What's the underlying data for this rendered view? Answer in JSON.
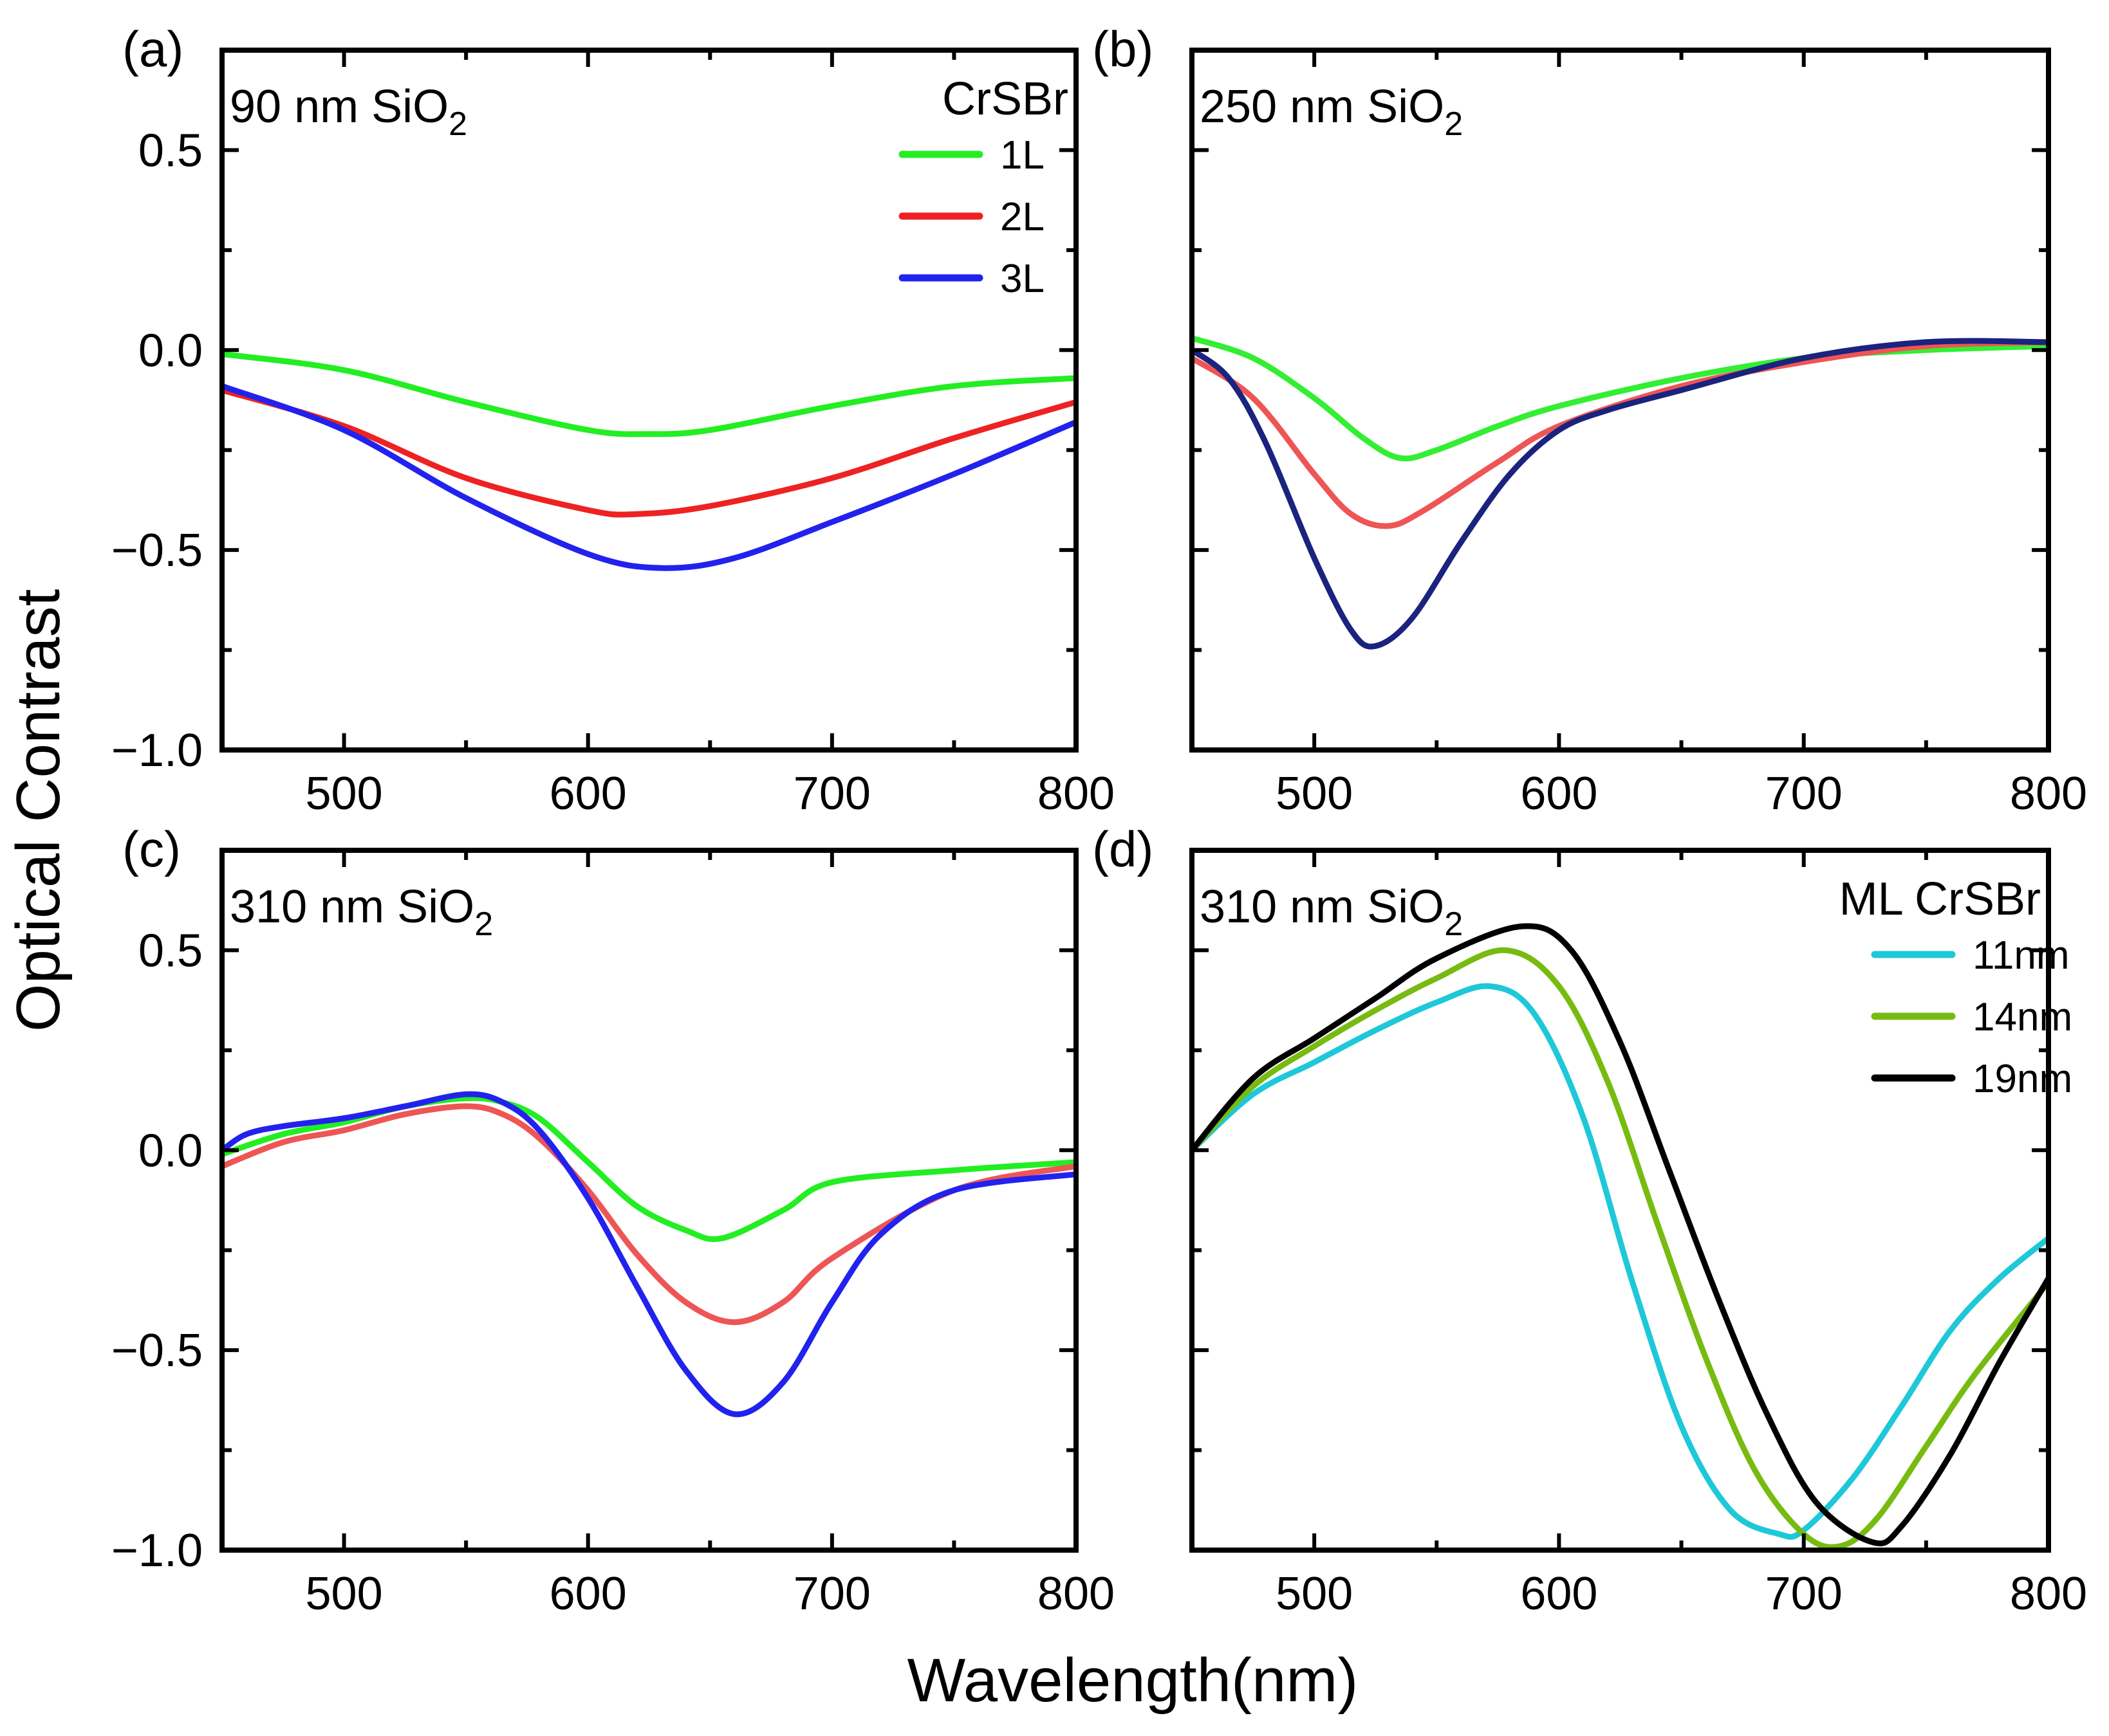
{
  "figure": {
    "ylabel": "Optical Contrast",
    "xlabel": "Wavelength(nm)"
  },
  "chart_data": [
    {
      "type": "line",
      "panel_label": "(a)",
      "annotation": {
        "prefix": "90 nm SiO",
        "subscript": "2"
      },
      "legend_title": "CrSBr",
      "legend_placement": "top-right",
      "xlim": [
        450,
        800
      ],
      "ylim": [
        -1.0,
        0.75
      ],
      "xticks": [
        500,
        600,
        700,
        800
      ],
      "xtick_labels": [
        "500",
        "600",
        "700",
        "800"
      ],
      "yticks": [
        0.5,
        0.0,
        -0.5,
        -1.0
      ],
      "ytick_labels": [
        "0.5",
        "0.0",
        "−0.5",
        "−1.0"
      ],
      "series": [
        {
          "name": "1L",
          "color": "#22ee22",
          "x": [
            450,
            500,
            550,
            600,
            625,
            650,
            700,
            750,
            800
          ],
          "y": [
            -0.01,
            -0.05,
            -0.13,
            -0.2,
            -0.21,
            -0.2,
            -0.14,
            -0.09,
            -0.07
          ]
        },
        {
          "name": "2L",
          "color": "#ee2222",
          "x": [
            450,
            500,
            550,
            600,
            620,
            650,
            700,
            750,
            800
          ],
          "y": [
            -0.1,
            -0.19,
            -0.32,
            -0.4,
            -0.41,
            -0.39,
            -0.32,
            -0.22,
            -0.13
          ]
        },
        {
          "name": "3L",
          "color": "#2222ee",
          "x": [
            450,
            500,
            550,
            600,
            630,
            660,
            700,
            750,
            800
          ],
          "y": [
            -0.09,
            -0.2,
            -0.37,
            -0.51,
            -0.545,
            -0.52,
            -0.43,
            -0.31,
            -0.18
          ]
        }
      ]
    },
    {
      "type": "line",
      "panel_label": "(b)",
      "annotation": {
        "prefix": "250 nm SiO",
        "subscript": "2"
      },
      "xlim": [
        450,
        800
      ],
      "ylim": [
        -1.0,
        0.75
      ],
      "xticks": [
        500,
        600,
        700,
        800
      ],
      "xtick_labels": [
        "500",
        "600",
        "700",
        "800"
      ],
      "yticks": [
        0.5,
        0.0,
        -0.5,
        -1.0
      ],
      "series": [
        {
          "name": "1L",
          "color": "#33ee33",
          "x": [
            450,
            475,
            500,
            520,
            535,
            550,
            575,
            600,
            650,
            700,
            750,
            800
          ],
          "y": [
            0.03,
            -0.02,
            -0.12,
            -0.22,
            -0.27,
            -0.25,
            -0.19,
            -0.14,
            -0.07,
            -0.02,
            0.0,
            0.01
          ]
        },
        {
          "name": "2L",
          "color": "#ee5555",
          "x": [
            450,
            475,
            500,
            515,
            530,
            545,
            575,
            600,
            650,
            700,
            750,
            800
          ],
          "y": [
            -0.02,
            -0.12,
            -0.31,
            -0.41,
            -0.44,
            -0.4,
            -0.28,
            -0.19,
            -0.09,
            -0.03,
            0.01,
            0.02
          ]
        },
        {
          "name": "3L",
          "color": "#1a237e",
          "x": [
            450,
            465,
            480,
            500,
            515,
            525,
            540,
            560,
            580,
            600,
            620,
            650,
            700,
            750,
            800
          ],
          "y": [
            0.0,
            -0.07,
            -0.23,
            -0.52,
            -0.7,
            -0.74,
            -0.67,
            -0.48,
            -0.31,
            -0.2,
            -0.15,
            -0.1,
            -0.02,
            0.02,
            0.02
          ]
        }
      ]
    },
    {
      "type": "line",
      "panel_label": "(c)",
      "annotation": {
        "prefix": "310 nm SiO",
        "subscript": "2"
      },
      "xlim": [
        450,
        800
      ],
      "ylim": [
        -1.0,
        0.75
      ],
      "xticks": [
        500,
        600,
        700,
        800
      ],
      "xtick_labels": [
        "500",
        "600",
        "700",
        "800"
      ],
      "yticks": [
        0.5,
        0.0,
        -0.5,
        -1.0
      ],
      "ytick_labels": [
        "0.5",
        "0.0",
        "−0.5",
        "−1.0"
      ],
      "series": [
        {
          "name": "1L",
          "color": "#22ee22",
          "x": [
            450,
            475,
            500,
            525,
            550,
            565,
            580,
            600,
            620,
            640,
            655,
            680,
            700,
            750,
            800
          ],
          "y": [
            -0.01,
            0.04,
            0.07,
            0.11,
            0.13,
            0.12,
            0.08,
            -0.03,
            -0.14,
            -0.2,
            -0.22,
            -0.15,
            -0.08,
            -0.05,
            -0.03
          ]
        },
        {
          "name": "2L",
          "color": "#ee5555",
          "x": [
            450,
            475,
            500,
            525,
            550,
            565,
            580,
            600,
            620,
            640,
            660,
            680,
            700,
            750,
            800
          ],
          "y": [
            -0.04,
            0.02,
            0.05,
            0.09,
            0.11,
            0.09,
            0.03,
            -0.1,
            -0.26,
            -0.38,
            -0.43,
            -0.38,
            -0.27,
            -0.1,
            -0.04
          ]
        },
        {
          "name": "3L",
          "color": "#2222ee",
          "x": [
            450,
            460,
            475,
            500,
            525,
            550,
            565,
            580,
            600,
            620,
            640,
            660,
            680,
            700,
            720,
            750,
            800
          ],
          "y": [
            0.0,
            0.04,
            0.06,
            0.08,
            0.11,
            0.14,
            0.12,
            0.05,
            -0.12,
            -0.34,
            -0.55,
            -0.66,
            -0.58,
            -0.38,
            -0.21,
            -0.1,
            -0.06
          ]
        }
      ]
    },
    {
      "type": "line",
      "panel_label": "(d)",
      "annotation": {
        "prefix": "310 nm SiO",
        "subscript": "2"
      },
      "legend_title": "ML CrSBr",
      "legend_placement": "top-right",
      "xlim": [
        450,
        800
      ],
      "ylim": [
        -1.0,
        0.75
      ],
      "xticks": [
        500,
        600,
        700,
        800
      ],
      "xtick_labels": [
        "500",
        "600",
        "700",
        "800"
      ],
      "yticks": [
        0.5,
        0.0,
        -0.5,
        -1.0
      ],
      "series": [
        {
          "name": "11nm",
          "color": "#1ec8d8",
          "x": [
            450,
            475,
            500,
            525,
            550,
            572,
            590,
            610,
            630,
            650,
            670,
            690,
            700,
            720,
            740,
            760,
            780,
            800
          ],
          "y": [
            0.0,
            0.14,
            0.22,
            0.3,
            0.37,
            0.41,
            0.34,
            0.08,
            -0.33,
            -0.69,
            -0.9,
            -0.96,
            -0.95,
            -0.82,
            -0.64,
            -0.45,
            -0.32,
            -0.22
          ]
        },
        {
          "name": "14nm",
          "color": "#77bb11",
          "x": [
            450,
            475,
            500,
            525,
            550,
            578,
            600,
            620,
            640,
            660,
            680,
            700,
            715,
            730,
            750,
            770,
            800
          ],
          "y": [
            0.0,
            0.16,
            0.26,
            0.35,
            0.43,
            0.5,
            0.41,
            0.17,
            -0.18,
            -0.52,
            -0.8,
            -0.96,
            -0.99,
            -0.92,
            -0.74,
            -0.56,
            -0.33
          ]
        },
        {
          "name": "19nm",
          "color": "#000000",
          "x": [
            450,
            475,
            500,
            525,
            550,
            585,
            605,
            625,
            645,
            665,
            685,
            705,
            728,
            740,
            760,
            780,
            800
          ],
          "y": [
            0.0,
            0.18,
            0.28,
            0.38,
            0.48,
            0.56,
            0.5,
            0.27,
            -0.05,
            -0.37,
            -0.66,
            -0.88,
            -0.98,
            -0.94,
            -0.76,
            -0.53,
            -0.32
          ]
        }
      ]
    }
  ]
}
